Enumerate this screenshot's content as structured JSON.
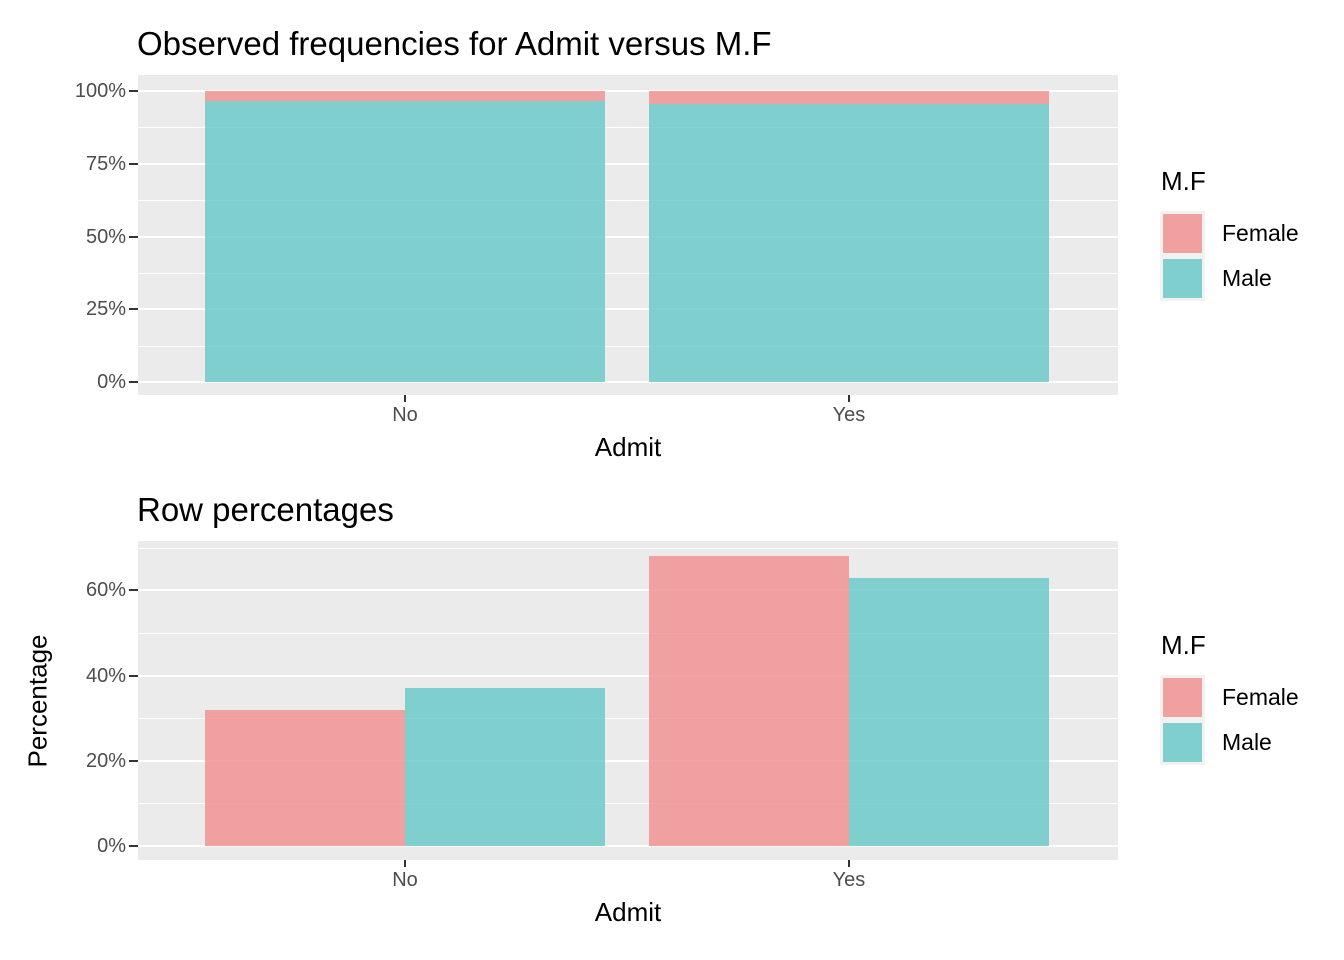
{
  "figure": {
    "background": "#FFFFFF"
  },
  "colors": {
    "female_bar": "rgba(241,147,144,0.85)",
    "male_bar": "rgba(107,202,200,0.85)",
    "female_swatch": "#F0A09E",
    "male_swatch": "#7ECFCD",
    "panel_background": "#EBEBEB",
    "gridline": "#FFFFFF",
    "tick_label": "#4D4D4D",
    "tick_mark": "#333333",
    "title_text": "#000000"
  },
  "chart_data": [
    {
      "type": "bar",
      "mode": "stacked",
      "title": "Observed frequencies for Admit versus M.F",
      "xlabel": "Admit",
      "ylabel": "",
      "categories": [
        "No",
        "Yes"
      ],
      "series": [
        {
          "name": "Female",
          "values": [
            3.4,
            4.5
          ]
        },
        {
          "name": "Male",
          "values": [
            96.6,
            95.5
          ]
        }
      ],
      "ylim": [
        0,
        100
      ],
      "y_major_ticks": [
        {
          "value": 0,
          "label": "0%"
        },
        {
          "value": 25,
          "label": "25%"
        },
        {
          "value": 50,
          "label": "50%"
        },
        {
          "value": 75,
          "label": "75%"
        },
        {
          "value": 100,
          "label": "100%"
        }
      ],
      "y_minor_ticks": [
        12.5,
        37.5,
        62.5,
        87.5
      ],
      "x_tick_labels": [
        "No",
        "Yes"
      ],
      "grid": "on",
      "legend_position": "right",
      "legend_title": "M.F",
      "legend_entries": [
        "Female",
        "Male"
      ]
    },
    {
      "type": "bar",
      "mode": "grouped",
      "title": "Row percentages",
      "xlabel": "Admit",
      "ylabel": "Percentage",
      "categories": [
        "No",
        "Yes"
      ],
      "series": [
        {
          "name": "Female",
          "values": [
            32,
            68
          ]
        },
        {
          "name": "Male",
          "values": [
            37,
            63
          ]
        }
      ],
      "ylim": [
        0,
        71.6
      ],
      "y_major_ticks": [
        {
          "value": 0,
          "label": "0%"
        },
        {
          "value": 20,
          "label": "20%"
        },
        {
          "value": 40,
          "label": "40%"
        },
        {
          "value": 60,
          "label": "60%"
        }
      ],
      "y_minor_ticks": [
        10,
        30,
        50,
        70
      ],
      "x_tick_labels": [
        "No",
        "Yes"
      ],
      "grid": "on",
      "legend_position": "right",
      "legend_title": "M.F",
      "legend_entries": [
        "Female",
        "Male"
      ]
    }
  ]
}
